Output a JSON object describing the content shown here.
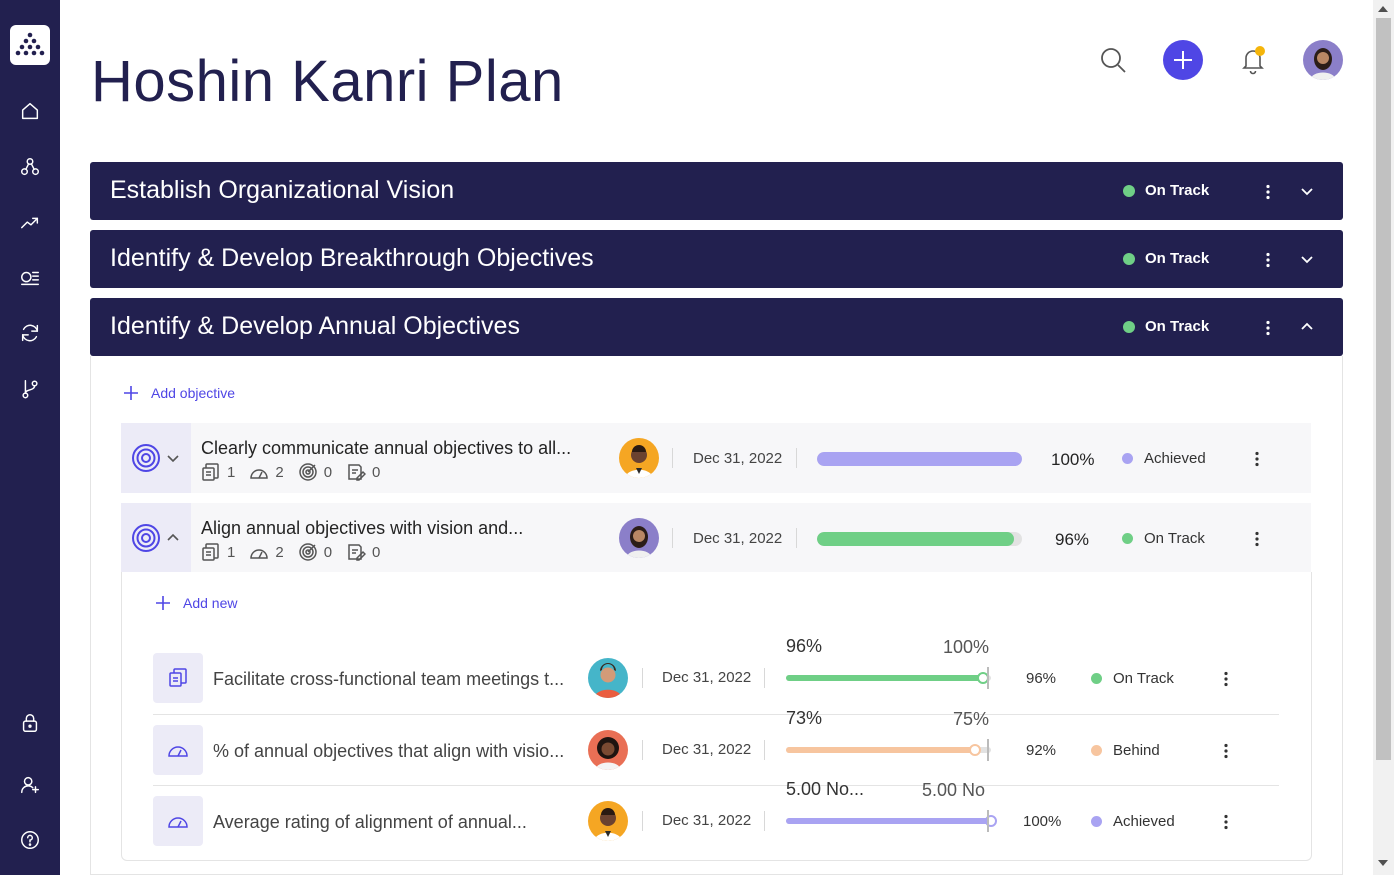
{
  "header": {
    "title": "Hoshin Kanri Plan"
  },
  "sidebar": {
    "items": [
      {
        "name": "home-icon"
      },
      {
        "name": "hierarchy-icon"
      },
      {
        "name": "trending-icon"
      },
      {
        "name": "list-icon"
      },
      {
        "name": "sync-icon"
      },
      {
        "name": "branch-icon"
      },
      {
        "name": "lock-icon"
      },
      {
        "name": "add-user-icon"
      },
      {
        "name": "help-icon"
      }
    ]
  },
  "colors": {
    "navy": "#22204f",
    "accent": "#4f46e5",
    "on_track": "#6fcf86",
    "achieved": "#a9a3f2",
    "behind": "#f7c59f"
  },
  "sections": [
    {
      "title": "Establish Organizational Vision",
      "status": "On Track",
      "expanded": false
    },
    {
      "title": "Identify & Develop Breakthrough Objectives",
      "status": "On Track",
      "expanded": false
    },
    {
      "title": "Identify & Develop Annual Objectives",
      "status": "On Track",
      "expanded": true
    }
  ],
  "panel": {
    "add_objective": "Add objective",
    "add_new": "Add new"
  },
  "objectives": [
    {
      "title": "Clearly communicate annual objectives to all...",
      "counts": [
        "1",
        "2",
        "0",
        "0"
      ],
      "date": "Dec 31, 2022",
      "progress": 1.0,
      "percent": "100%",
      "status": "Achieved"
    },
    {
      "title": "Align annual objectives with vision and...",
      "counts": [
        "1",
        "2",
        "0",
        "0"
      ],
      "date": "Dec 31, 2022",
      "progress": 0.96,
      "percent": "96%",
      "status": "On Track"
    }
  ],
  "key_results": [
    {
      "title": "Facilitate cross-functional team meetings t...",
      "icon": "document-icon",
      "date": "Dec 31, 2022",
      "current": "96%",
      "target": "100%",
      "progress": 0.96,
      "percent": "96%",
      "status": "On Track"
    },
    {
      "title": "% of annual objectives that align with visio...",
      "icon": "gauge-icon",
      "date": "Dec 31, 2022",
      "current": "73%",
      "target": "75%",
      "progress": 0.92,
      "percent": "92%",
      "status": "Behind"
    },
    {
      "title": "Average rating of alignment of annual...",
      "icon": "gauge-icon",
      "date": "Dec 31, 2022",
      "current": "5.00 No...",
      "target": "5.00 No",
      "progress": 1.0,
      "percent": "100%",
      "status": "Achieved"
    }
  ]
}
